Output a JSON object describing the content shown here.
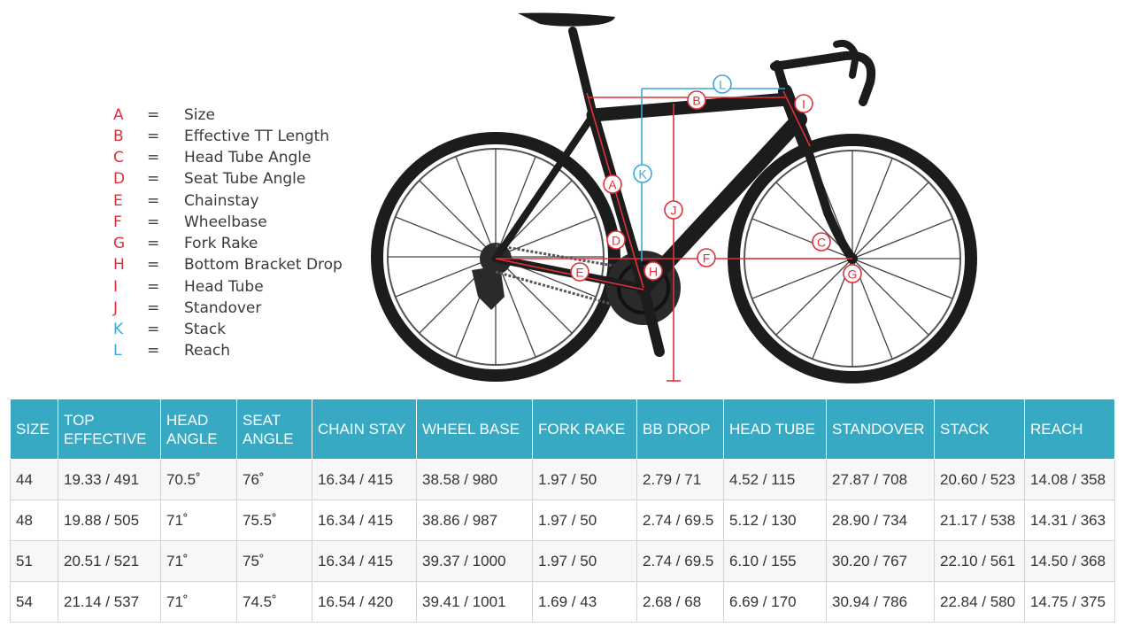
{
  "legend": [
    {
      "letter": "A",
      "eq": "=",
      "label": "Size",
      "color": "#e0303a"
    },
    {
      "letter": "B",
      "eq": "=",
      "label": "Effective TT Length",
      "color": "#e0303a"
    },
    {
      "letter": "C",
      "eq": "=",
      "label": "Head Tube Angle",
      "color": "#e0303a"
    },
    {
      "letter": "D",
      "eq": "=",
      "label": "Seat Tube Angle",
      "color": "#e0303a"
    },
    {
      "letter": "E",
      "eq": "=",
      "label": "Chainstay",
      "color": "#e0303a"
    },
    {
      "letter": "F",
      "eq": "=",
      "label": "Wheelbase",
      "color": "#e0303a"
    },
    {
      "letter": "G",
      "eq": "=",
      "label": "Fork Rake",
      "color": "#e0303a"
    },
    {
      "letter": "H",
      "eq": "=",
      "label": "Bottom Bracket Drop",
      "color": "#e0303a"
    },
    {
      "letter": "I",
      "eq": "=",
      "label": "Head Tube",
      "color": "#e0303a"
    },
    {
      "letter": "J",
      "eq": "=",
      "label": "Standover",
      "color": "#e0303a"
    },
    {
      "letter": "K",
      "eq": "=",
      "label": "Stack",
      "color": "#38a9d8"
    },
    {
      "letter": "L",
      "eq": "=",
      "label": "Reach",
      "color": "#38a9d8"
    }
  ],
  "diagram": {
    "markers": {
      "A": "A",
      "B": "B",
      "C": "C",
      "D": "D",
      "E": "E",
      "F": "F",
      "G": "G",
      "H": "H",
      "I": "I",
      "J": "J",
      "K": "K",
      "L": "L"
    },
    "colors": {
      "red": "#e0303a",
      "blue": "#38a9d8",
      "frame": "#1c1c1c"
    }
  },
  "table": {
    "headers": [
      {
        "line1": "SIZE",
        "line2": ""
      },
      {
        "line1": "TOP",
        "line2": "EFFECTIVE"
      },
      {
        "line1": "HEAD",
        "line2": "ANGLE"
      },
      {
        "line1": "SEAT",
        "line2": "ANGLE"
      },
      {
        "line1": "CHAIN STAY",
        "line2": ""
      },
      {
        "line1": "WHEEL BASE",
        "line2": ""
      },
      {
        "line1": "FORK RAKE",
        "line2": ""
      },
      {
        "line1": "BB DROP",
        "line2": ""
      },
      {
        "line1": "HEAD TUBE",
        "line2": ""
      },
      {
        "line1": "STANDOVER",
        "line2": ""
      },
      {
        "line1": "STACK",
        "line2": ""
      },
      {
        "line1": "REACH",
        "line2": ""
      }
    ],
    "rows": [
      [
        "44",
        "19.33 / 491",
        "70.5˚",
        "76˚",
        "16.34 / 415",
        "38.58 / 980",
        "1.97 / 50",
        "2.79 / 71",
        "4.52 / 115",
        "27.87 / 708",
        "20.60 / 523",
        "14.08 / 358"
      ],
      [
        "48",
        "19.88 / 505",
        "71˚",
        "75.5˚",
        "16.34 / 415",
        "38.86 / 987",
        "1.97 / 50",
        "2.74 / 69.5",
        "5.12 / 130",
        "28.90 / 734",
        "21.17 / 538",
        "14.31 / 363"
      ],
      [
        "51",
        "20.51 / 521",
        "71˚",
        "75˚",
        "16.34 / 415",
        "39.37 / 1000",
        "1.97 / 50",
        "2.74 / 69.5",
        "6.10 / 155",
        "30.20 / 767",
        "22.10 / 561",
        "14.50 / 368"
      ],
      [
        "54",
        "21.14 / 537",
        "71˚",
        "74.5˚",
        "16.54 / 420",
        "39.41 / 1001",
        "1.69 / 43",
        "2.68 / 68",
        "6.69 / 170",
        "30.94 / 786",
        "22.84 / 580",
        "14.75 / 375"
      ]
    ],
    "header_color": "#38a9c2"
  }
}
